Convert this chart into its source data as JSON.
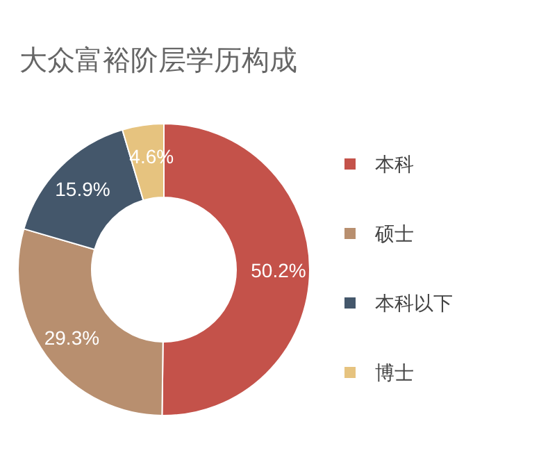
{
  "chart_data": {
    "type": "donut",
    "title": "大众富裕阶层学历构成",
    "categories": [
      "本科",
      "硕士",
      "本科以下",
      "博士"
    ],
    "values": [
      50.2,
      29.3,
      15.9,
      4.6
    ],
    "colors": [
      "#c4524a",
      "#b88f6f",
      "#44576b",
      "#e6c37f"
    ],
    "value_labels": [
      "50.2%",
      "29.3%",
      "15.9%",
      "4.6%"
    ],
    "legend": "right"
  }
}
